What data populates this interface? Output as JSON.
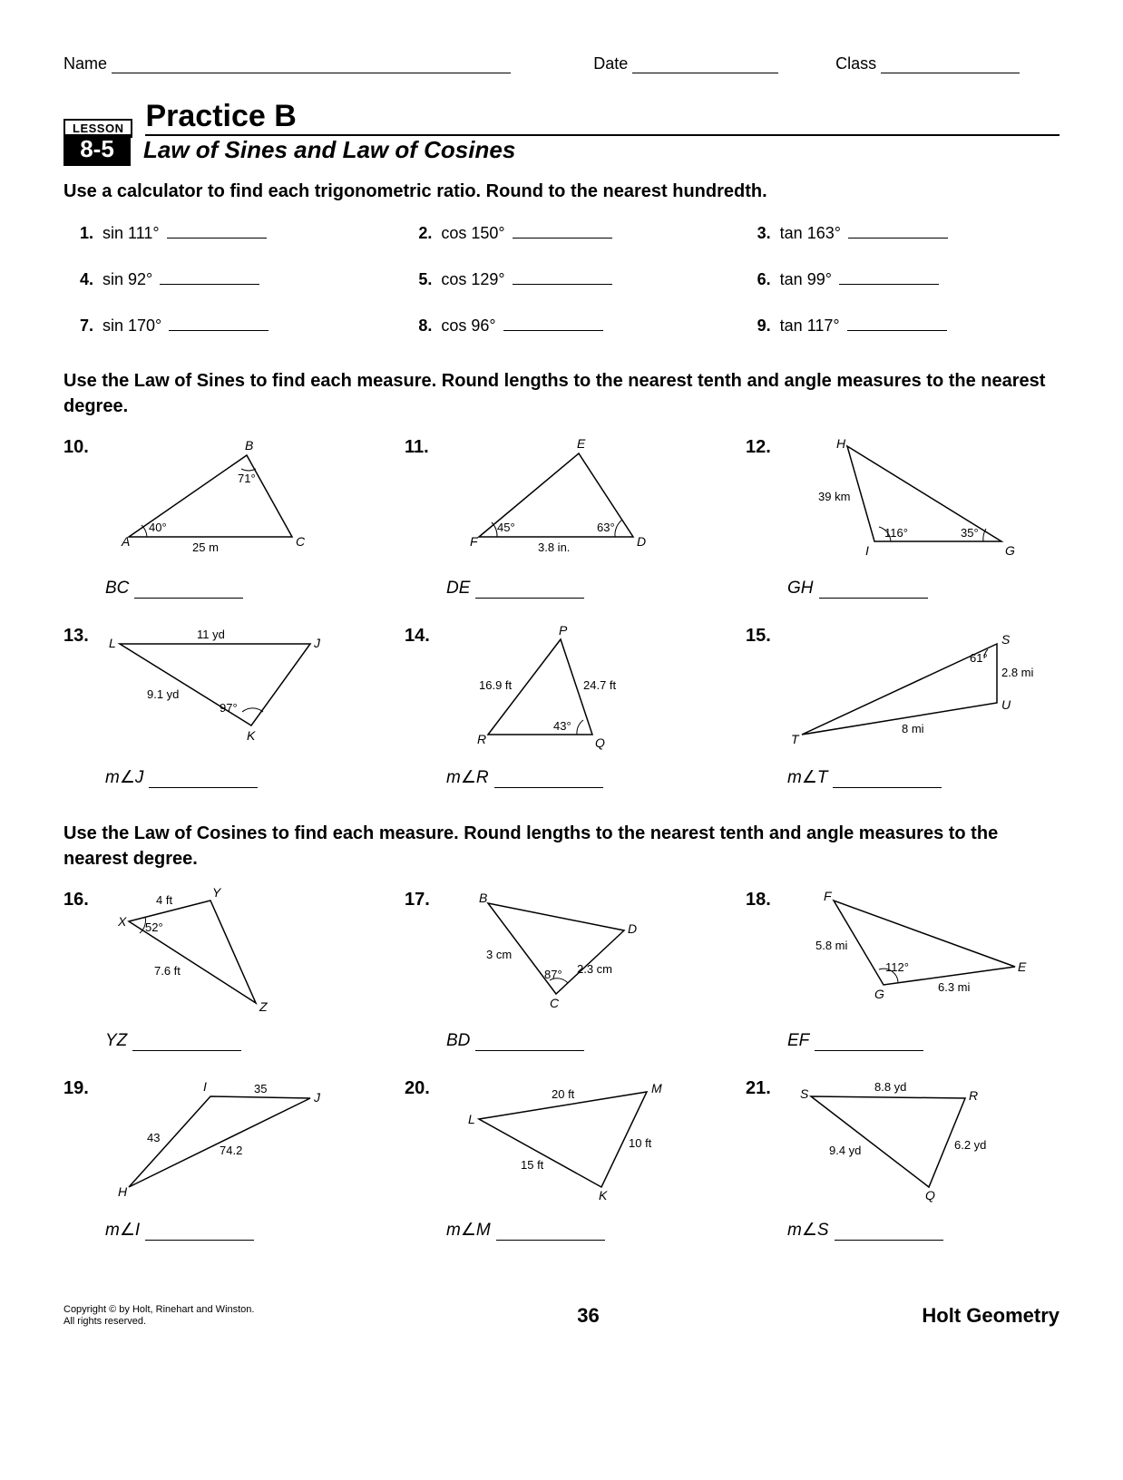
{
  "header": {
    "name_label": "Name",
    "date_label": "Date",
    "class_label": "Class"
  },
  "lesson": {
    "badge": "LESSON",
    "number": "8-5",
    "title": "Practice B",
    "subtitle": "Law of Sines and Law of Cosines"
  },
  "instructions": {
    "trig": "Use a calculator to find each trigonometric ratio. Round to the nearest hundredth.",
    "sines": "Use the Law of Sines to find each measure. Round lengths to the nearest tenth and angle measures to the nearest degree.",
    "cosines": "Use the Law of Cosines to find each measure. Round lengths to the nearest tenth and angle measures to the nearest degree."
  },
  "trig_problems": [
    {
      "n": "1.",
      "expr": "sin 111°"
    },
    {
      "n": "2.",
      "expr": "cos 150°"
    },
    {
      "n": "3.",
      "expr": "tan 163°"
    },
    {
      "n": "4.",
      "expr": "sin 92°"
    },
    {
      "n": "5.",
      "expr": "cos 129°"
    },
    {
      "n": "6.",
      "expr": "tan 99°"
    },
    {
      "n": "7.",
      "expr": "sin 170°"
    },
    {
      "n": "8.",
      "expr": "cos 96°"
    },
    {
      "n": "9.",
      "expr": "tan 117°"
    }
  ],
  "sines_problems": [
    {
      "n": "10.",
      "answer_var": "BC",
      "svg": "s10"
    },
    {
      "n": "11.",
      "answer_var": "DE",
      "svg": "s11"
    },
    {
      "n": "12.",
      "answer_var": "GH",
      "svg": "s12"
    },
    {
      "n": "13.",
      "answer_var": "m∠J",
      "svg": "s13"
    },
    {
      "n": "14.",
      "answer_var": "m∠R",
      "svg": "s14"
    },
    {
      "n": "15.",
      "answer_var": "m∠T",
      "svg": "s15"
    }
  ],
  "cosines_problems": [
    {
      "n": "16.",
      "answer_var": "YZ",
      "svg": "c16"
    },
    {
      "n": "17.",
      "answer_var": "BD",
      "svg": "c17"
    },
    {
      "n": "18.",
      "answer_var": "EF",
      "svg": "c18"
    },
    {
      "n": "19.",
      "answer_var": "m∠I",
      "svg": "c19"
    },
    {
      "n": "20.",
      "answer_var": "m∠M",
      "svg": "c20"
    },
    {
      "n": "21.",
      "answer_var": "m∠S",
      "svg": "c21"
    }
  ],
  "figures": {
    "s10": {
      "A": "A",
      "B": "B",
      "C": "C",
      "angA": "40°",
      "angB": "71°",
      "base": "25 m"
    },
    "s11": {
      "F": "F",
      "E": "E",
      "D": "D",
      "angF": "45°",
      "angD": "63°",
      "base": "3.8 in."
    },
    "s12": {
      "H": "H",
      "I": "I",
      "G": "G",
      "angI": "116°",
      "angG": "35°",
      "side": "39 km"
    },
    "s13": {
      "L": "L",
      "J": "J",
      "K": "K",
      "top": "11 yd",
      "left": "9.1 yd",
      "angK": "97°"
    },
    "s14": {
      "P": "P",
      "R": "R",
      "Q": "Q",
      "left": "16.9 ft",
      "right": "24.7 ft",
      "angQ": "43°"
    },
    "s15": {
      "T": "T",
      "S": "S",
      "U": "U",
      "angS": "61°",
      "SU": "2.8 mi",
      "TU": "8 mi"
    },
    "c16": {
      "X": "X",
      "Y": "Y",
      "Z": "Z",
      "XY": "4 ft",
      "angX": "52°",
      "XZ": "7.6 ft"
    },
    "c17": {
      "B": "B",
      "C": "C",
      "D": "D",
      "BC": "3 cm",
      "CD": "2.3 cm",
      "angC": "87°"
    },
    "c18": {
      "F": "F",
      "G": "G",
      "E": "E",
      "FG": "5.8 mi",
      "GE": "6.3 mi",
      "angG": "112°"
    },
    "c19": {
      "H": "H",
      "I": "I",
      "J": "J",
      "IJ": "35",
      "HI": "43",
      "HJ": "74.2"
    },
    "c20": {
      "L": "L",
      "K": "K",
      "M": "M",
      "LM": "20 ft",
      "KM": "10 ft",
      "LK": "15 ft"
    },
    "c21": {
      "S": "S",
      "R": "R",
      "Q": "Q",
      "SR": "8.8 yd",
      "SQ": "9.4 yd",
      "RQ": "6.2 yd"
    }
  },
  "footer": {
    "copyright": "Copyright © by Holt, Rinehart and Winston.",
    "rights": "All rights reserved.",
    "page": "36",
    "brand": "Holt Geometry"
  }
}
